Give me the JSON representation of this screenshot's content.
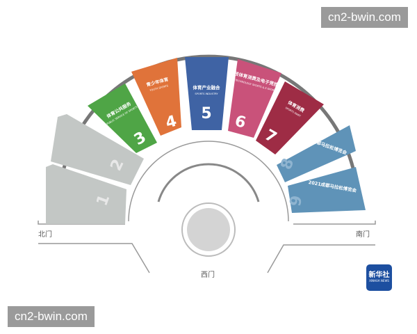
{
  "watermark_top": "cn2-bwin.com",
  "watermark_bottom": "cn2-bwin.com",
  "gates": {
    "north": "北门",
    "south": "南门",
    "west": "西门"
  },
  "halls": [
    {
      "number": "1",
      "name_cn": "",
      "name_en": "",
      "color": "#c3c7c5"
    },
    {
      "number": "2",
      "name_cn": "",
      "name_en": "",
      "color": "#c3c7c5"
    },
    {
      "number": "3",
      "name_cn": "体育公共服务",
      "name_en": "PUBLIC SERVICE OF SPORTS",
      "color": "#4fa546"
    },
    {
      "number": "4",
      "name_cn": "青少年体育",
      "name_en": "YOUTH SPORTS",
      "color": "#e0733a"
    },
    {
      "number": "5",
      "name_cn": "体育产业融合",
      "name_en": "SPORTS INDUSTRY",
      "color": "#3f63a4"
    },
    {
      "number": "6",
      "name_cn": "科技体育消费及电子竞技",
      "name_en": "HIGH TECHNOLOGY SPORTS & E-SPORTS",
      "color": "#c9527a"
    },
    {
      "number": "7",
      "name_cn": "体育消费",
      "name_en": "SPORTS MART",
      "color": "#9e2c45"
    },
    {
      "number": "8",
      "name_cn": "2021成都马拉松博览会",
      "name_en": "",
      "color": "#5f93b8"
    },
    {
      "number": "9",
      "name_cn": "2021成都马拉松博览会",
      "name_en": "",
      "color": "#5f93b8"
    }
  ],
  "logo": {
    "cn": "新华社",
    "en": "XINHUA NEWS"
  }
}
